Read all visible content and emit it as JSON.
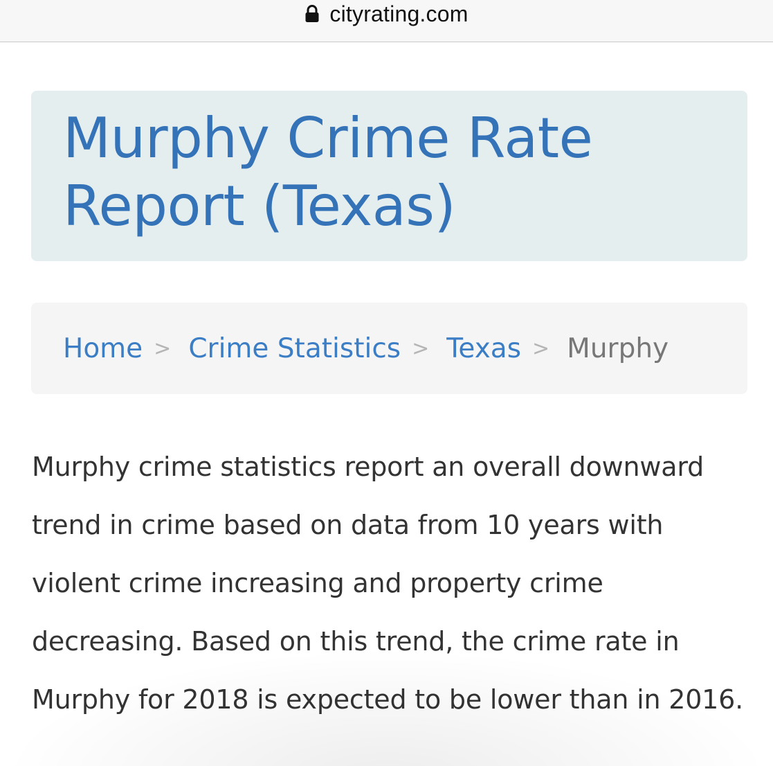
{
  "browser": {
    "url": "cityrating.com",
    "lock_icon": "lock-icon"
  },
  "header": {
    "title_line1": "Murphy Crime Rate",
    "title_line2": "Report (Texas)"
  },
  "breadcrumb": {
    "items": [
      {
        "label": "Home"
      },
      {
        "label": "Crime Statistics"
      },
      {
        "label": "Texas"
      },
      {
        "label": "Murphy"
      }
    ],
    "separator": ">"
  },
  "main": {
    "intro": "Murphy crime statistics report an overall downward trend in crime based on data from 10 years with violent crime increasing and property crime decreasing. Based on this trend, the crime rate in Murphy for 2018 is expected to be lower than in 2016."
  },
  "colors": {
    "title": "#3573b8",
    "title_bg": "#e5eeef",
    "link": "#3b7ec5",
    "body_text": "#333333",
    "breadcrumb_bg": "#f5f5f5"
  }
}
